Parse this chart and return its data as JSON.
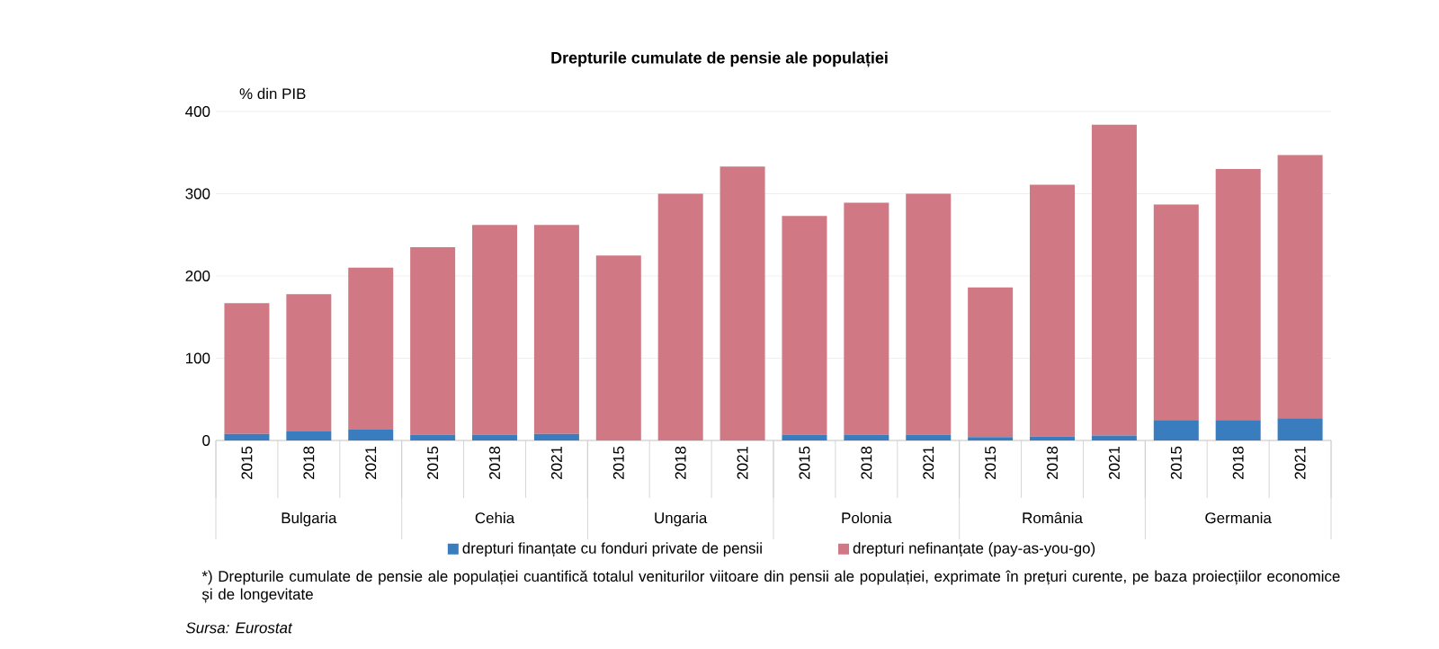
{
  "chart_data": {
    "type": "bar",
    "stacked": true,
    "title": "Drepturile cumulate de pensie ale populației",
    "ylabel": "% din PIB",
    "categories": [
      "2015",
      "2018",
      "2021",
      "2015",
      "2018",
      "2021",
      "2015",
      "2018",
      "2021",
      "2015",
      "2018",
      "2021",
      "2015",
      "2018",
      "2021",
      "2015",
      "2018",
      "2021"
    ],
    "series": [
      {
        "name": "drepturi  finanțate cu fonduri private de pensii",
        "color": "#3a7dbf",
        "values": [
          8,
          11,
          13,
          7,
          7,
          8,
          0,
          0,
          0,
          7,
          7,
          7,
          4,
          5,
          6,
          25,
          25,
          27
        ]
      },
      {
        "name": "drepturi  nefinanțate (pay-as-you-go)",
        "color": "#d07884",
        "values": [
          159,
          167,
          197,
          228,
          255,
          254,
          225,
          300,
          333,
          266,
          282,
          293,
          182,
          306,
          378,
          262,
          305,
          320
        ]
      }
    ],
    "ylim": [
      0,
      400
    ],
    "yticks": [
      0,
      100,
      200,
      300,
      400
    ],
    "grid": "y",
    "legend": "bottom",
    "annotations": [
      "Bulgaria",
      "Cehia",
      "Ungaria",
      "Polonia",
      "România",
      "Germania",
      "*) Drepturile  cumulate de pensie ale populației  cuantifică totalul veniturilor viitoare din pensii ale populației, exprimate în prețuri curente, pe baza proiecțiilor economice și de longevitate",
      "Sursa: Eurostat"
    ]
  }
}
